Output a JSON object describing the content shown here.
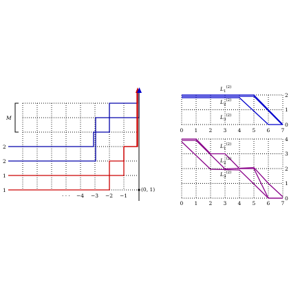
{
  "left": {
    "bracket_label": "M",
    "row_labels": [
      "2",
      "2",
      "1",
      "1"
    ],
    "x_ticks": [
      "−4",
      "−3",
      "−2",
      "−1"
    ],
    "x_ellipsis": "· · ·",
    "origin_label": "(0, 1)",
    "colors": {
      "blue": "#0000aa",
      "red": "#cc0000"
    }
  },
  "right_top": {
    "x_ticks": [
      "0",
      "1",
      "2",
      "3",
      "4",
      "5",
      "6",
      "7"
    ],
    "y_ticks": [
      "0",
      "1",
      "2"
    ],
    "path_labels": [
      {
        "main": "L",
        "sub": "1",
        "sup": "(2)"
      },
      {
        "main": "L",
        "sub": "2",
        "sup": "(2)"
      },
      {
        "main": "L",
        "sub": "3",
        "sup": "(2)"
      }
    ],
    "color": "#0000cc"
  },
  "right_bottom": {
    "x_ticks": [
      "0",
      "1",
      "2",
      "3",
      "4",
      "5",
      "6",
      "7"
    ],
    "y_ticks": [
      "0",
      "1",
      "2",
      "3",
      "4"
    ],
    "path_labels": [
      {
        "main": "L",
        "sub": "1",
        "sup": "(2)"
      },
      {
        "main": "L",
        "sub": "2",
        "sup": "(2)"
      },
      {
        "main": "L",
        "sub": "3",
        "sup": "(2)"
      }
    ],
    "color": "#880088"
  }
}
